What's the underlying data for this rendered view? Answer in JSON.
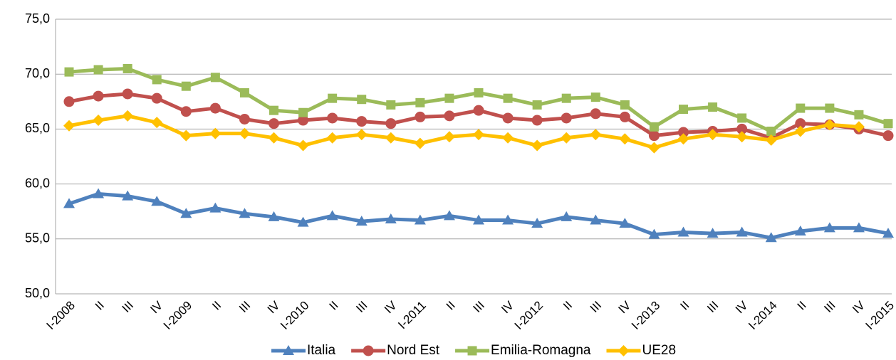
{
  "chart_data": {
    "type": "line",
    "categories": [
      "I-2008",
      "II",
      "III",
      "IV",
      "I-2009",
      "II",
      "III",
      "IV",
      "I-2010",
      "II",
      "III",
      "IV",
      "I-2011",
      "II",
      "III",
      "IV",
      "I-2012",
      "II",
      "III",
      "IV",
      "I-2013",
      "II",
      "III",
      "IV",
      "I-2014",
      "II",
      "III",
      "IV",
      "I-2015"
    ],
    "series": [
      {
        "name": "Italia",
        "color": "#4f81bd",
        "marker": "triangle",
        "values": [
          58.2,
          59.1,
          58.9,
          58.4,
          57.3,
          57.8,
          57.3,
          57.0,
          56.5,
          57.1,
          56.6,
          56.8,
          56.7,
          57.1,
          56.7,
          56.7,
          56.4,
          57.0,
          56.7,
          56.4,
          55.4,
          55.6,
          55.5,
          55.6,
          55.1,
          55.7,
          56.0,
          56.0,
          55.5
        ]
      },
      {
        "name": "Nord Est",
        "color": "#c0504d",
        "marker": "circle",
        "values": [
          67.5,
          68.0,
          68.2,
          67.8,
          66.6,
          66.9,
          65.9,
          65.5,
          65.8,
          66.0,
          65.7,
          65.5,
          66.1,
          66.2,
          66.7,
          66.0,
          65.8,
          66.0,
          66.4,
          66.1,
          64.4,
          64.7,
          64.8,
          65.0,
          64.2,
          65.5,
          65.4,
          65.0,
          64.4
        ]
      },
      {
        "name": "Emilia-Romagna",
        "color": "#9bbb59",
        "marker": "square",
        "values": [
          70.2,
          70.4,
          70.5,
          69.5,
          68.9,
          69.7,
          68.3,
          66.7,
          66.5,
          67.8,
          67.7,
          67.2,
          67.4,
          67.8,
          68.3,
          67.8,
          67.2,
          67.8,
          67.9,
          67.2,
          65.2,
          66.8,
          67.0,
          66.0,
          64.8,
          66.9,
          66.9,
          66.3,
          65.5
        ]
      },
      {
        "name": "UE28",
        "color": "#ffc000",
        "marker": "diamond",
        "values": [
          65.3,
          65.8,
          66.2,
          65.6,
          64.4,
          64.6,
          64.6,
          64.2,
          63.5,
          64.2,
          64.5,
          64.2,
          63.7,
          64.3,
          64.5,
          64.2,
          63.5,
          64.2,
          64.5,
          64.1,
          63.3,
          64.1,
          64.5,
          64.3,
          64.0,
          64.8,
          65.4,
          65.2,
          null
        ]
      }
    ],
    "ylim": [
      50,
      75
    ],
    "yticks": [
      {
        "value": 50,
        "label": "50,0"
      },
      {
        "value": 55,
        "label": "55,0"
      },
      {
        "value": 60,
        "label": "60,0"
      },
      {
        "value": 65,
        "label": "65,0"
      },
      {
        "value": 70,
        "label": "70,0"
      },
      {
        "value": 75,
        "label": "75,0"
      }
    ],
    "grid": true,
    "legend": "bottom"
  }
}
